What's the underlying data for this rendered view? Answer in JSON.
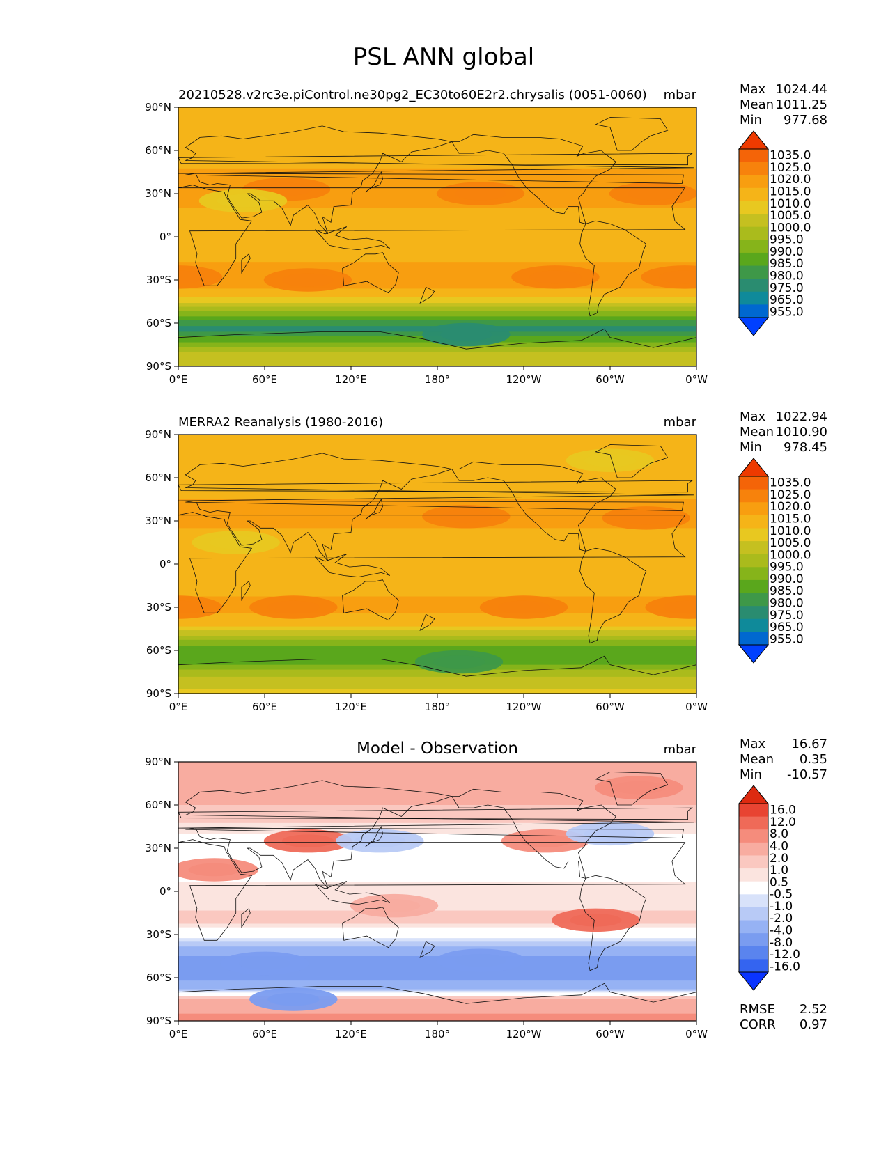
{
  "figure_title": "PSL ANN global",
  "colors": {
    "psl": [
      "#0040ff",
      "#0068d0",
      "#0f8a9a",
      "#2a8c70",
      "#3e9848",
      "#5aa71c",
      "#86b41a",
      "#aabb1c",
      "#c5c020",
      "#e8c820",
      "#f5b418",
      "#f89e10",
      "#f7820c",
      "#f46408",
      "#ee3a00"
    ],
    "diff": [
      "#0a34ff",
      "#3464f0",
      "#5a84ee",
      "#7a9cf0",
      "#96b2f4",
      "#b8caf6",
      "#d8e2fa",
      "#ffffff",
      "#fbe4df",
      "#fac8c0",
      "#f8aca0",
      "#f58c7c",
      "#ef6a58",
      "#e84432",
      "#dd2a10"
    ],
    "land": [
      "#ff8a7a",
      "#f0a090"
    ]
  },
  "chart_data": [
    {
      "type": "heatmap",
      "id": "model",
      "title": "20210528.v2rc3e.piControl.ne30pg2_EC30to60E2r2.chrysalis (0051-0060)",
      "units": "mbar",
      "stats": {
        "max_label": "Max",
        "max": "1024.44",
        "mean_label": "Mean",
        "mean": "1011.25",
        "min_label": "Min",
        "min": "977.68"
      },
      "xlim": [
        0,
        360
      ],
      "ylim": [
        -90,
        90
      ],
      "xticks": [
        "0°E",
        "60°E",
        "120°E",
        "180°",
        "120°W",
        "60°W",
        "0°W"
      ],
      "yticks": [
        "90°N",
        "60°N",
        "30°N",
        "0°",
        "30°S",
        "60°S",
        "90°S"
      ],
      "levels": [
        "1035.0",
        "1025.0",
        "1020.0",
        "1015.0",
        "1010.0",
        "1005.0",
        "1000.0",
        "995.0",
        "990.0",
        "985.0",
        "980.0",
        "975.0",
        "965.0",
        "955.0"
      ],
      "colormap": "psl",
      "zonal_profile": [
        {
          "lat": 90,
          "v": 1014
        },
        {
          "lat": 75,
          "v": 1015
        },
        {
          "lat": 60,
          "v": 1011
        },
        {
          "lat": 45,
          "v": 1016
        },
        {
          "lat": 30,
          "v": 1018
        },
        {
          "lat": 15,
          "v": 1013
        },
        {
          "lat": 0,
          "v": 1011
        },
        {
          "lat": -15,
          "v": 1014
        },
        {
          "lat": -30,
          "v": 1018
        },
        {
          "lat": -42,
          "v": 1011
        },
        {
          "lat": -50,
          "v": 998
        },
        {
          "lat": -58,
          "v": 985
        },
        {
          "lat": -64,
          "v": 977
        },
        {
          "lat": -70,
          "v": 986
        },
        {
          "lat": -80,
          "v": 1000
        },
        {
          "lat": -90,
          "v": 1003
        }
      ],
      "features": [
        {
          "lon": 210,
          "lat": 30,
          "v": 1022
        },
        {
          "lon": 330,
          "lat": 30,
          "v": 1022
        },
        {
          "lon": 75,
          "lat": 33,
          "v": 1021
        },
        {
          "lon": 90,
          "lat": -30,
          "v": 1022
        },
        {
          "lon": 262,
          "lat": -28,
          "v": 1021
        },
        {
          "lon": 352,
          "lat": -28,
          "v": 1021
        },
        {
          "lon": 0,
          "lat": -28,
          "v": 1021
        },
        {
          "lon": 45,
          "lat": 25,
          "v": 1008
        },
        {
          "lon": 200,
          "lat": -68,
          "v": 977
        }
      ],
      "rmse": null
    },
    {
      "type": "heatmap",
      "id": "obs",
      "title": "MERRA2 Reanalysis (1980-2016)",
      "units": "mbar",
      "stats": {
        "max_label": "Max",
        "max": "1022.94",
        "mean_label": "Mean",
        "mean": "1010.90",
        "min_label": "Min",
        "min": "978.45"
      },
      "xlim": [
        0,
        360
      ],
      "ylim": [
        -90,
        90
      ],
      "xticks": [
        "0°E",
        "60°E",
        "120°E",
        "180°",
        "120°W",
        "60°W",
        "0°W"
      ],
      "yticks": [
        "90°N",
        "60°N",
        "30°N",
        "0°",
        "30°S",
        "60°S",
        "90°S"
      ],
      "levels": [
        "1035.0",
        "1025.0",
        "1020.0",
        "1015.0",
        "1010.0",
        "1005.0",
        "1000.0",
        "995.0",
        "990.0",
        "985.0",
        "980.0",
        "975.0",
        "965.0",
        "955.0"
      ],
      "colormap": "psl",
      "zonal_profile": [
        {
          "lat": 90,
          "v": 1012
        },
        {
          "lat": 75,
          "v": 1012
        },
        {
          "lat": 60,
          "v": 1010
        },
        {
          "lat": 45,
          "v": 1015
        },
        {
          "lat": 30,
          "v": 1017
        },
        {
          "lat": 15,
          "v": 1012
        },
        {
          "lat": 0,
          "v": 1010
        },
        {
          "lat": -15,
          "v": 1013
        },
        {
          "lat": -30,
          "v": 1017
        },
        {
          "lat": -42,
          "v": 1011
        },
        {
          "lat": -50,
          "v": 999
        },
        {
          "lat": -58,
          "v": 988
        },
        {
          "lat": -64,
          "v": 985
        },
        {
          "lat": -70,
          "v": 990
        },
        {
          "lat": -80,
          "v": 1002
        },
        {
          "lat": -90,
          "v": 1006
        }
      ],
      "features": [
        {
          "lon": 200,
          "lat": 33,
          "v": 1021
        },
        {
          "lon": 325,
          "lat": 32,
          "v": 1021
        },
        {
          "lon": 75,
          "lat": 35,
          "v": 1019
        },
        {
          "lon": 80,
          "lat": -30,
          "v": 1020
        },
        {
          "lon": 240,
          "lat": -30,
          "v": 1020
        },
        {
          "lon": 355,
          "lat": -30,
          "v": 1020
        },
        {
          "lon": 0,
          "lat": -30,
          "v": 1020
        },
        {
          "lon": 40,
          "lat": 15,
          "v": 1008
        },
        {
          "lon": 300,
          "lat": 72,
          "v": 1008
        },
        {
          "lon": 195,
          "lat": -68,
          "v": 984
        }
      ],
      "rmse": null
    },
    {
      "type": "heatmap",
      "id": "diff",
      "title": "Model - Observation",
      "units": "mbar",
      "stats": {
        "max_label": "Max",
        "max": "16.67",
        "mean_label": "Mean",
        "mean": "0.35",
        "min_label": "Min",
        "min": "-10.57"
      },
      "xlim": [
        0,
        360
      ],
      "ylim": [
        -90,
        90
      ],
      "xticks": [
        "0°E",
        "60°E",
        "120°E",
        "180°",
        "120°W",
        "60°W",
        "0°W"
      ],
      "yticks": [
        "90°N",
        "60°N",
        "30°N",
        "0°",
        "30°S",
        "60°S",
        "90°S"
      ],
      "levels": [
        "16.0",
        "12.0",
        "8.0",
        "4.0",
        "2.0",
        "1.0",
        "0.5",
        "-0.5",
        "-1.0",
        "-2.0",
        "-4.0",
        "-8.0",
        "-12.0",
        "-16.0"
      ],
      "colormap": "diff",
      "zonal_profile": [
        {
          "lat": 90,
          "v": 3
        },
        {
          "lat": 70,
          "v": 3
        },
        {
          "lat": 55,
          "v": 1.5
        },
        {
          "lat": 40,
          "v": 0.5
        },
        {
          "lat": 20,
          "v": 0.3
        },
        {
          "lat": 0,
          "v": 0.6
        },
        {
          "lat": -20,
          "v": 1.2
        },
        {
          "lat": -35,
          "v": -0.8
        },
        {
          "lat": -45,
          "v": -4
        },
        {
          "lat": -55,
          "v": -5
        },
        {
          "lat": -62,
          "v": -4
        },
        {
          "lat": -68,
          "v": -2
        },
        {
          "lat": -75,
          "v": 2
        },
        {
          "lat": -90,
          "v": 5
        }
      ],
      "features": [
        {
          "lon": 90,
          "lat": 35,
          "v": 10
        },
        {
          "lon": 25,
          "lat": 15,
          "v": 5
        },
        {
          "lon": 290,
          "lat": -20,
          "v": 9
        },
        {
          "lon": 255,
          "lat": 35,
          "v": 5
        },
        {
          "lon": 320,
          "lat": 72,
          "v": 5
        },
        {
          "lon": 300,
          "lat": 40,
          "v": -2
        },
        {
          "lon": 140,
          "lat": 35,
          "v": -1.5
        },
        {
          "lon": 80,
          "lat": -75,
          "v": -6
        },
        {
          "lon": 210,
          "lat": -48,
          "v": -6
        },
        {
          "lon": 60,
          "lat": -50,
          "v": -5
        },
        {
          "lon": 150,
          "lat": -10,
          "v": 2
        }
      ],
      "rmse": {
        "rmse_label": "RMSE",
        "rmse": "2.52",
        "corr_label": "CORR",
        "corr": "0.97"
      }
    }
  ]
}
